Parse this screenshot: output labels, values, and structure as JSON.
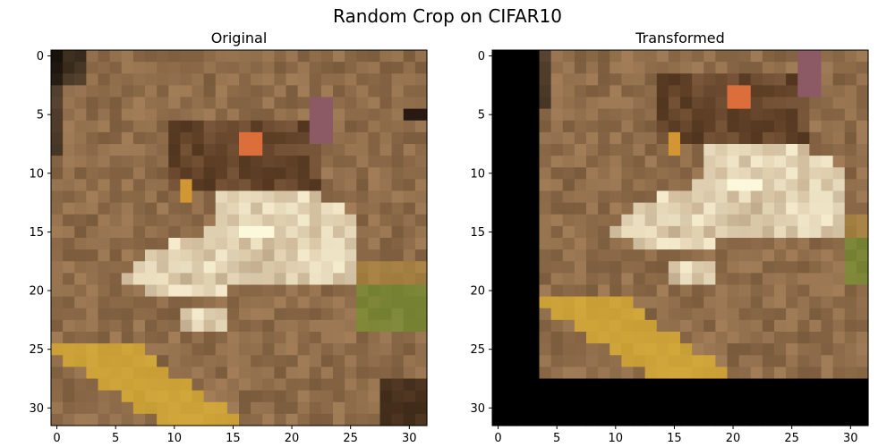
{
  "figure": {
    "title": "Random Crop on CIFAR10"
  },
  "chart_data": [
    {
      "type": "heatmap",
      "title": "Original",
      "image_size": [
        32,
        32
      ],
      "xlim": [
        -0.5,
        31.5
      ],
      "ylim": [
        31.5,
        -0.5
      ],
      "xticks": [
        0,
        5,
        10,
        15,
        20,
        25,
        30
      ],
      "yticks": [
        0,
        5,
        10,
        15,
        20,
        25,
        30
      ],
      "content": "CIFAR10 frog image",
      "background_color": "#8a6a48"
    },
    {
      "type": "heatmap",
      "title": "Transformed",
      "image_size": [
        32,
        32
      ],
      "xlim": [
        -0.5,
        31.5
      ],
      "ylim": [
        31.5,
        -0.5
      ],
      "xticks": [
        0,
        5,
        10,
        15,
        20,
        25,
        30
      ],
      "yticks": [
        0,
        5,
        10,
        15,
        20,
        25,
        30
      ],
      "content": "CIFAR10 frog image, randomly cropped with zero padding",
      "padding_color": "#000000",
      "content_region": {
        "cols": [
          4,
          31
        ],
        "rows": [
          0,
          27
        ]
      },
      "content_offset": {
        "dx": 4,
        "dy": -4
      }
    }
  ]
}
